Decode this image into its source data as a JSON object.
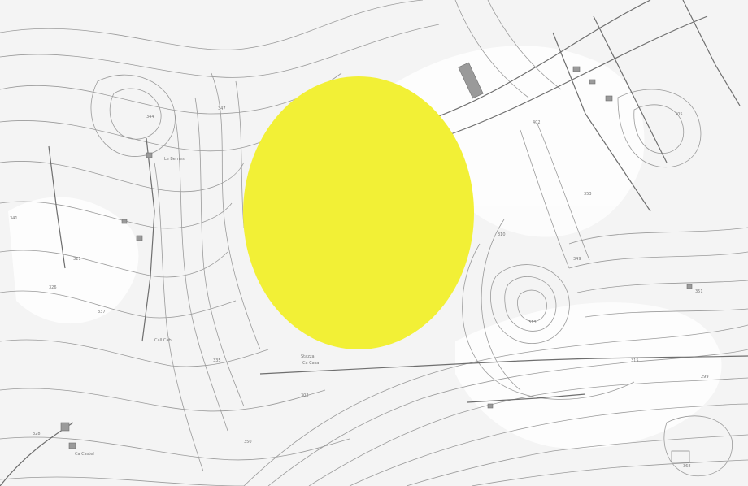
{
  "map": {
    "highlight_color": "#f2f036",
    "place_labels": [
      "Le Bernes",
      "Call Cab",
      "Ca Castel",
      "Stazza",
      "Ca Casa"
    ],
    "spot_heights": [
      "344",
      "326",
      "350",
      "313",
      "305",
      "402",
      "353",
      "368",
      "347",
      "321",
      "337",
      "328",
      "302",
      "315",
      "351",
      "349",
      "310",
      "335",
      "299",
      "341"
    ]
  }
}
